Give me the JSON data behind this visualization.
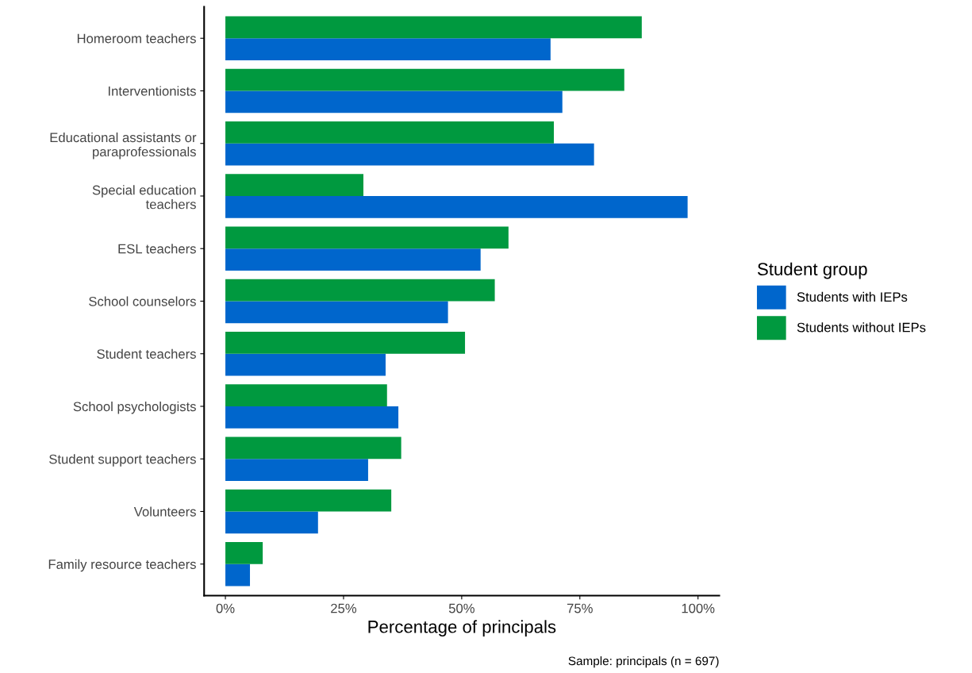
{
  "chart_data": {
    "type": "bar",
    "orientation": "horizontal",
    "categories": [
      "Homeroom teachers",
      "Interventionists",
      "Educational assistants or\nparaprofessionals",
      "Special education\nteachers",
      "ESL teachers",
      "School counselors",
      "Student teachers",
      "School psychologists",
      "Student support teachers",
      "Volunteers",
      "Family resource teachers"
    ],
    "series": [
      {
        "name": "Students with IEPs",
        "color": "#0066cc",
        "values": [
          68.8,
          71.3,
          78.0,
          97.8,
          54.0,
          47.1,
          33.9,
          36.6,
          30.2,
          19.6,
          5.2
        ]
      },
      {
        "name": "Students without IEPs",
        "color": "#00993f",
        "values": [
          88.1,
          84.4,
          69.5,
          29.2,
          59.9,
          57.0,
          50.7,
          34.2,
          37.2,
          35.1,
          7.9
        ]
      }
    ],
    "xlabel": "Percentage of principals",
    "legend_title": "Student group",
    "legend": "right",
    "xlim": [
      -4.5,
      104.5
    ],
    "xticks": [
      {
        "value": 0,
        "label": "0%"
      },
      {
        "value": 25,
        "label": "25%"
      },
      {
        "value": 50,
        "label": "50%"
      },
      {
        "value": 75,
        "label": "75%"
      },
      {
        "value": 100,
        "label": "100%"
      }
    ],
    "grid": false,
    "annotations": [
      "Sample: principals (n = 697)"
    ]
  }
}
